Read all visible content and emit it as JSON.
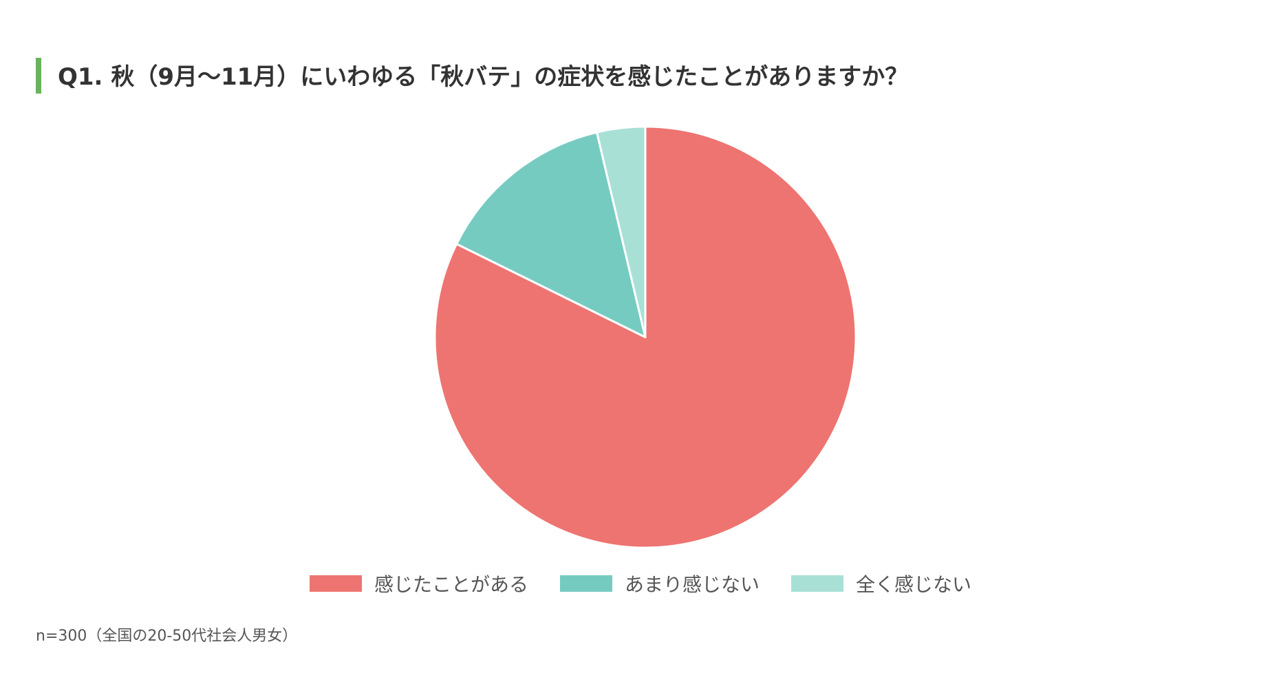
{
  "title": "Q1. 秋（9月〜11月）にいわゆる「秋バテ」の症状を感じたことがありますか？",
  "footnote": "n=300（全国の20-50代社会人男女）",
  "colors": {
    "accent_bar": "#6bb25e",
    "slice_border": "#ffffff"
  },
  "chart_data": {
    "type": "pie",
    "title": "Q1. 秋（9月〜11月）にいわゆる「秋バテ」の症状を感じたことがありますか？",
    "start_angle": "12 o'clock",
    "direction": "clockwise",
    "legend_position": "bottom",
    "slices": [
      {
        "label": "感じたことがある",
        "value": 82.3,
        "color": "#ee7471"
      },
      {
        "label": "あまり感じない",
        "value": 14.0,
        "color": "#76cbc1"
      },
      {
        "label": "全く感じない",
        "value": 3.7,
        "color": "#a8e0d6"
      }
    ]
  }
}
